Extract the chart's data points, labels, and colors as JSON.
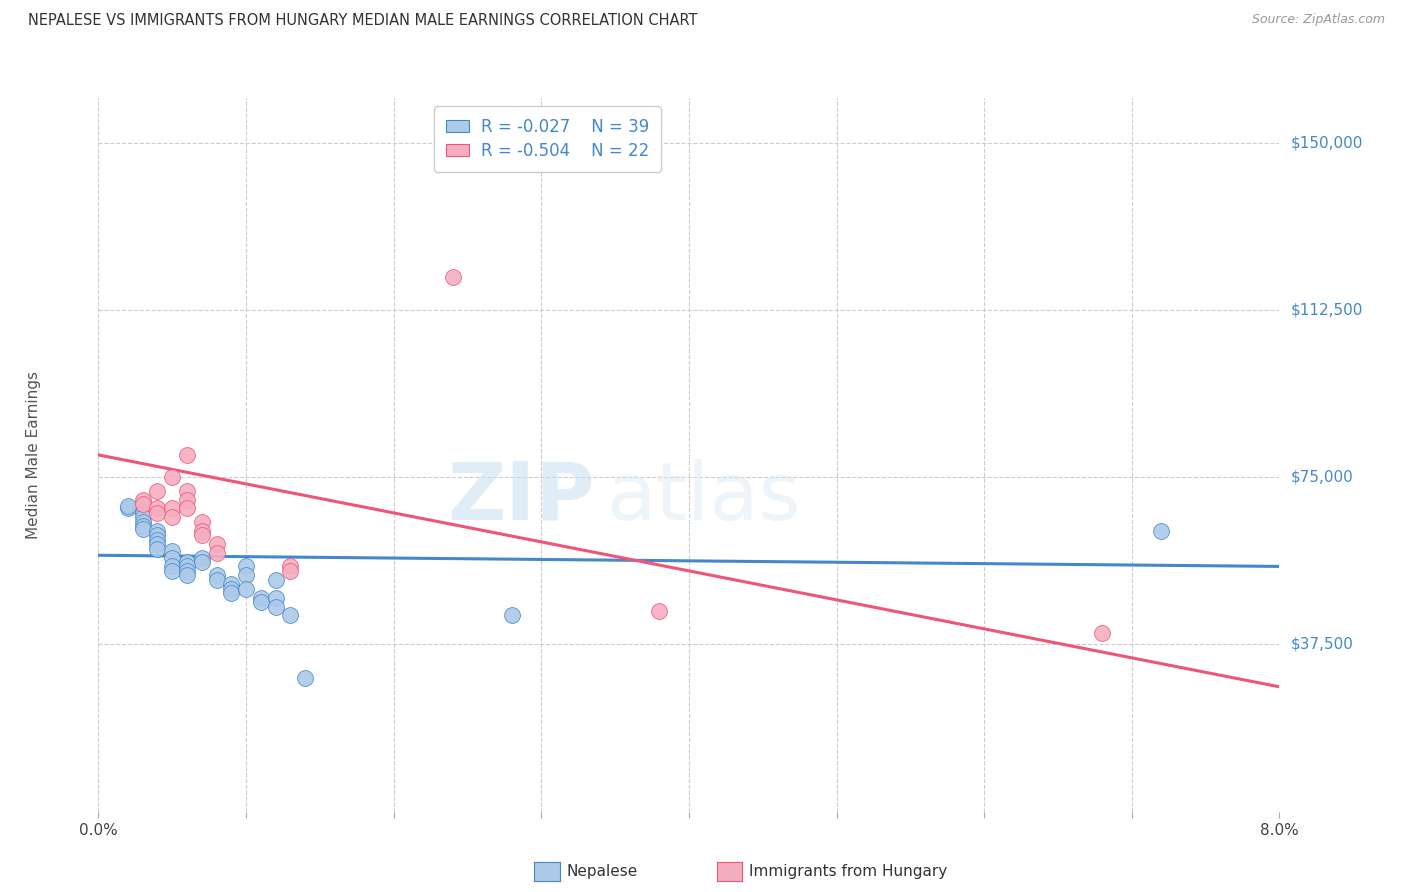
{
  "title": "NEPALESE VS IMMIGRANTS FROM HUNGARY MEDIAN MALE EARNINGS CORRELATION CHART",
  "source": "Source: ZipAtlas.com",
  "ylabel": "Median Male Earnings",
  "xlim": [
    0.0,
    0.08
  ],
  "ylim": [
    0,
    160000
  ],
  "yticks": [
    0,
    37500,
    75000,
    112500,
    150000
  ],
  "ytick_labels": [
    "",
    "$37,500",
    "$75,000",
    "$112,500",
    "$150,000"
  ],
  "background_color": "#ffffff",
  "grid_color": "#cccccc",
  "watermark_zip": "ZIP",
  "watermark_atlas": "atlas",
  "legend_r1": "-0.027",
  "legend_n1": "39",
  "legend_r2": "-0.504",
  "legend_n2": "22",
  "nepalese_color": "#adc9e8",
  "hungary_color": "#f5aec0",
  "line_color_nepalese": "#4488cc",
  "line_color_hungary": "#ee5577",
  "nepalese_scatter": [
    [
      0.002,
      68000
    ],
    [
      0.002,
      68500
    ],
    [
      0.003,
      67000
    ],
    [
      0.003,
      66000
    ],
    [
      0.003,
      65000
    ],
    [
      0.003,
      64000
    ],
    [
      0.003,
      63500
    ],
    [
      0.004,
      63000
    ],
    [
      0.004,
      62000
    ],
    [
      0.004,
      61000
    ],
    [
      0.004,
      60000
    ],
    [
      0.004,
      59000
    ],
    [
      0.005,
      58500
    ],
    [
      0.005,
      57000
    ],
    [
      0.005,
      55000
    ],
    [
      0.005,
      54000
    ],
    [
      0.006,
      56000
    ],
    [
      0.006,
      55000
    ],
    [
      0.006,
      54000
    ],
    [
      0.006,
      53000
    ],
    [
      0.007,
      57000
    ],
    [
      0.007,
      56000
    ],
    [
      0.008,
      53000
    ],
    [
      0.008,
      52000
    ],
    [
      0.009,
      51000
    ],
    [
      0.009,
      50000
    ],
    [
      0.009,
      49000
    ],
    [
      0.01,
      55000
    ],
    [
      0.01,
      53000
    ],
    [
      0.01,
      50000
    ],
    [
      0.011,
      48000
    ],
    [
      0.011,
      47000
    ],
    [
      0.012,
      52000
    ],
    [
      0.012,
      48000
    ],
    [
      0.012,
      46000
    ],
    [
      0.013,
      44000
    ],
    [
      0.014,
      30000
    ],
    [
      0.072,
      63000
    ],
    [
      0.028,
      44000
    ]
  ],
  "hungary_scatter": [
    [
      0.003,
      70000
    ],
    [
      0.003,
      69000
    ],
    [
      0.004,
      72000
    ],
    [
      0.004,
      68000
    ],
    [
      0.004,
      67000
    ],
    [
      0.005,
      75000
    ],
    [
      0.005,
      68000
    ],
    [
      0.005,
      66000
    ],
    [
      0.006,
      80000
    ],
    [
      0.006,
      72000
    ],
    [
      0.006,
      70000
    ],
    [
      0.006,
      68000
    ],
    [
      0.007,
      65000
    ],
    [
      0.007,
      63000
    ],
    [
      0.007,
      62000
    ],
    [
      0.008,
      60000
    ],
    [
      0.008,
      58000
    ],
    [
      0.013,
      55000
    ],
    [
      0.013,
      54000
    ],
    [
      0.024,
      120000
    ],
    [
      0.038,
      45000
    ],
    [
      0.068,
      40000
    ]
  ],
  "nepalese_line_x": [
    0.0,
    0.08
  ],
  "nepalese_line_y": [
    57500,
    55000
  ],
  "hungary_line_x": [
    0.0,
    0.08
  ],
  "hungary_line_y": [
    80000,
    28000
  ],
  "label_nepalese": "Nepalese",
  "label_hungary": "Immigrants from Hungary"
}
